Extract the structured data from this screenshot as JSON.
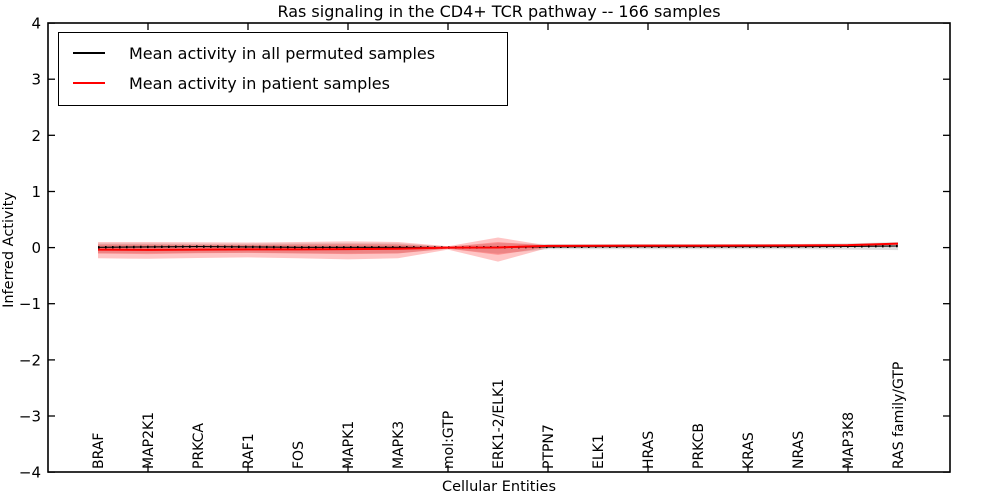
{
  "title": "Ras signaling in the CD4+ TCR pathway -- 166 samples",
  "legend": {
    "entries": [
      {
        "label": "Mean activity in all permuted samples",
        "color": "#000000"
      },
      {
        "label": "Mean activity in patient samples",
        "color": "#ff0000"
      }
    ]
  },
  "chart_data": {
    "type": "line",
    "title": "Ras signaling in the CD4+ TCR pathway -- 166 samples",
    "xlabel": "Cellular Entities",
    "ylabel": "Inferred Activity",
    "ylim": [
      -4,
      4
    ],
    "grid": false,
    "legend_position": "upper left",
    "ytick_values": [
      4,
      3,
      2,
      1,
      0,
      -1,
      -2,
      -3,
      -4
    ],
    "ytick_labels": [
      "4",
      "3",
      "2",
      "1",
      "0",
      "−1",
      "−2",
      "−3",
      "−4"
    ],
    "xtick_indices": [
      1,
      3,
      5,
      7,
      9,
      11,
      13,
      15
    ],
    "categories": [
      "BRAF",
      "MAP2K1",
      "PRKCA",
      "RAF1",
      "FOS",
      "MAPK1",
      "MAPK3",
      "mol:GTP",
      "ERK1-2/ELK1",
      "PTPN7",
      "ELK1",
      "HRAS",
      "PRKCB",
      "KRAS",
      "NRAS",
      "MAP3K8",
      "RAS family/GTP"
    ],
    "series": [
      {
        "name": "Mean activity in all permuted samples",
        "color": "#000000",
        "style": "solid-with-dots",
        "values": [
          0.005,
          0.013,
          0.018,
          0.013,
          0.006,
          0.005,
          0.006,
          0.001,
          0.006,
          0.013,
          0.016,
          0.016,
          0.016,
          0.016,
          0.016,
          0.021,
          0.028
        ]
      },
      {
        "name": "Mean activity in patient samples",
        "color": "#ff0000",
        "style": "solid",
        "values": [
          -0.036,
          -0.041,
          -0.036,
          -0.032,
          -0.032,
          -0.027,
          -0.02,
          0.0,
          0.002,
          0.03,
          0.034,
          0.036,
          0.036,
          0.038,
          0.04,
          0.045,
          0.071
        ]
      }
    ],
    "bands": [
      {
        "name": "permuted-samples-range",
        "color": "rgba(110,110,110,0.22)",
        "upper": [
          0.075,
          0.075,
          0.07,
          0.07,
          0.075,
          0.08,
          0.075,
          0.02,
          0.08,
          0.065,
          0.065,
          0.065,
          0.065,
          0.065,
          0.065,
          0.075,
          0.1
        ],
        "lower": [
          -0.1,
          -0.1,
          -0.095,
          -0.09,
          -0.1,
          -0.105,
          -0.1,
          -0.02,
          -0.11,
          -0.03,
          -0.03,
          -0.03,
          -0.03,
          -0.03,
          -0.03,
          -0.035,
          -0.045
        ]
      },
      {
        "name": "patient-samples-range-outer",
        "color": "rgba(255,25,25,0.25)",
        "upper": [
          0.1,
          0.1,
          0.095,
          0.09,
          0.1,
          0.11,
          0.1,
          0.025,
          0.18,
          0.035,
          0.042,
          0.044,
          0.044,
          0.046,
          0.048,
          0.052,
          0.085
        ],
        "lower": [
          -0.19,
          -0.2,
          -0.185,
          -0.175,
          -0.19,
          -0.21,
          -0.19,
          -0.035,
          -0.25,
          -0.005,
          0.005,
          0.008,
          0.008,
          0.01,
          0.012,
          0.018,
          0.05
        ]
      },
      {
        "name": "patient-samples-range-inner",
        "color": "rgba(255,25,25,0.28)",
        "upper": [
          0.055,
          0.055,
          0.05,
          0.048,
          0.055,
          0.06,
          0.055,
          0.012,
          0.1,
          0.032,
          0.038,
          0.04,
          0.04,
          0.042,
          0.044,
          0.048,
          0.078
        ],
        "lower": [
          -0.105,
          -0.115,
          -0.1,
          -0.095,
          -0.105,
          -0.115,
          -0.105,
          -0.018,
          -0.13,
          0.005,
          0.012,
          0.015,
          0.015,
          0.018,
          0.02,
          0.025,
          0.058
        ]
      }
    ]
  }
}
